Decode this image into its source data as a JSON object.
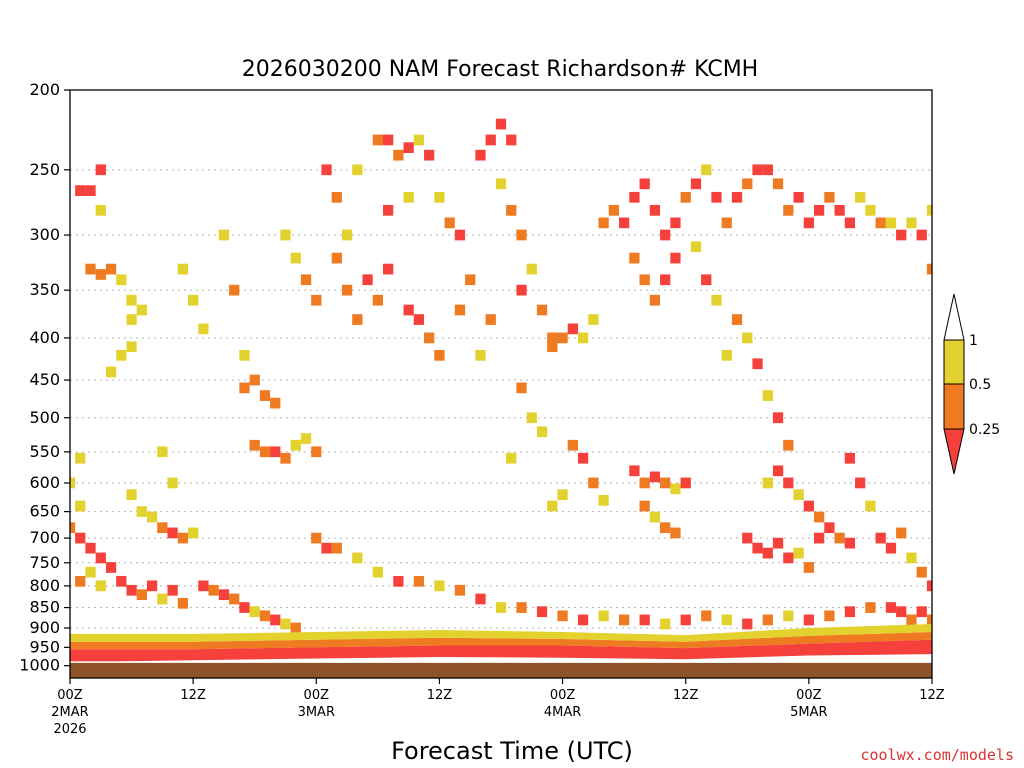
{
  "chart_data": {
    "type": "heatmap",
    "title": "2026030200 NAM Forecast Richardson# KCMH",
    "xlabel": "Forecast Time (UTC)",
    "ylabel": "",
    "y_scale": "log-pressure",
    "ylim": [
      1000,
      200
    ],
    "xlim_hours": [
      0,
      84
    ],
    "y_ticks": [
      200,
      250,
      300,
      350,
      400,
      450,
      500,
      550,
      600,
      650,
      700,
      750,
      800,
      850,
      900,
      950,
      1000
    ],
    "x_ticks": [
      {
        "hour": 0,
        "lines": [
          "00Z",
          "2MAR",
          "2026"
        ]
      },
      {
        "hour": 12,
        "lines": [
          "12Z"
        ]
      },
      {
        "hour": 24,
        "lines": [
          "00Z",
          "3MAR"
        ]
      },
      {
        "hour": 36,
        "lines": [
          "12Z"
        ]
      },
      {
        "hour": 48,
        "lines": [
          "00Z",
          "4MAR"
        ]
      },
      {
        "hour": 60,
        "lines": [
          "12Z"
        ]
      },
      {
        "hour": 72,
        "lines": [
          "00Z",
          "5MAR"
        ]
      },
      {
        "hour": 84,
        "lines": [
          "12Z"
        ]
      }
    ],
    "grid": "dotted horizontal at pressure ticks",
    "colorbar": {
      "placement": "right",
      "levels": [
        "1",
        "0.5",
        "0.25"
      ],
      "bins": [
        {
          "range": "0.5-1",
          "color": "#e3d22e"
        },
        {
          "range": "0.25-0.5",
          "color": "#ee7a22"
        },
        {
          "range": "<0.25",
          "color": "#f5403c"
        }
      ]
    },
    "surface": {
      "color": "#8f532a",
      "top_pressure_hpa": 990
    },
    "bands": [
      {
        "name": "boundary-layer-red",
        "hour_start": 0,
        "hour_end": 84,
        "p_bottom": [
          990,
          985,
          980,
          976,
          978,
          982,
          972,
          968
        ],
        "p_top": [
          955,
          955,
          950,
          945,
          945,
          952,
          940,
          930
        ],
        "category": "<0.25"
      },
      {
        "name": "low-orange",
        "hour_start": 0,
        "hour_end": 84,
        "p_bottom": [
          955,
          955,
          950,
          945,
          945,
          952,
          940,
          930
        ],
        "p_top": [
          935,
          935,
          930,
          925,
          928,
          935,
          920,
          910
        ],
        "category": "0.25-0.5"
      },
      {
        "name": "low-yellow",
        "hour_start": 0,
        "hour_end": 84,
        "p_bottom": [
          935,
          935,
          930,
          925,
          928,
          935,
          920,
          910
        ],
        "p_top": [
          915,
          915,
          910,
          905,
          910,
          918,
          900,
          890
        ],
        "category": "0.5-1"
      }
    ],
    "cells": [
      [
        1,
        265,
        "<0.25"
      ],
      [
        2,
        265,
        "<0.25"
      ],
      [
        3,
        250,
        "<0.25"
      ],
      [
        3,
        280,
        "0.5-1"
      ],
      [
        2,
        330,
        "0.25-0.5"
      ],
      [
        3,
        335,
        "0.25-0.5"
      ],
      [
        4,
        330,
        "0.25-0.5"
      ],
      [
        5,
        340,
        "0.5-1"
      ],
      [
        6,
        360,
        "0.5-1"
      ],
      [
        6,
        380,
        "0.5-1"
      ],
      [
        7,
        370,
        "0.5-1"
      ],
      [
        6,
        410,
        "0.5-1"
      ],
      [
        5,
        420,
        "0.5-1"
      ],
      [
        4,
        440,
        "0.5-1"
      ],
      [
        1,
        560,
        "0.5-1"
      ],
      [
        0,
        600,
        "0.5-1"
      ],
      [
        1,
        640,
        "0.5-1"
      ],
      [
        0,
        680,
        "0.25-0.5"
      ],
      [
        1,
        700,
        "<0.25"
      ],
      [
        2,
        720,
        "<0.25"
      ],
      [
        3,
        740,
        "<0.25"
      ],
      [
        2,
        770,
        "0.5-1"
      ],
      [
        1,
        790,
        "0.25-0.5"
      ],
      [
        3,
        800,
        "0.5-1"
      ],
      [
        4,
        760,
        "<0.25"
      ],
      [
        5,
        790,
        "<0.25"
      ],
      [
        6,
        810,
        "<0.25"
      ],
      [
        7,
        820,
        "0.25-0.5"
      ],
      [
        8,
        800,
        "<0.25"
      ],
      [
        9,
        830,
        "0.5-1"
      ],
      [
        10,
        810,
        "<0.25"
      ],
      [
        11,
        840,
        "0.25-0.5"
      ],
      [
        6,
        620,
        "0.5-1"
      ],
      [
        7,
        650,
        "0.5-1"
      ],
      [
        8,
        660,
        "0.5-1"
      ],
      [
        9,
        680,
        "0.25-0.5"
      ],
      [
        10,
        690,
        "<0.25"
      ],
      [
        11,
        700,
        "0.25-0.5"
      ],
      [
        12,
        690,
        "0.5-1"
      ],
      [
        9,
        550,
        "0.5-1"
      ],
      [
        10,
        600,
        "0.5-1"
      ],
      [
        11,
        330,
        "0.5-1"
      ],
      [
        12,
        360,
        "0.5-1"
      ],
      [
        13,
        390,
        "0.5-1"
      ],
      [
        15,
        300,
        "0.5-1"
      ],
      [
        16,
        350,
        "0.25-0.5"
      ],
      [
        17,
        420,
        "0.5-1"
      ],
      [
        17,
        460,
        "0.25-0.5"
      ],
      [
        18,
        450,
        "0.25-0.5"
      ],
      [
        19,
        470,
        "0.25-0.5"
      ],
      [
        20,
        480,
        "0.25-0.5"
      ],
      [
        18,
        540,
        "0.25-0.5"
      ],
      [
        19,
        550,
        "0.25-0.5"
      ],
      [
        20,
        550,
        "<0.25"
      ],
      [
        21,
        560,
        "0.25-0.5"
      ],
      [
        22,
        540,
        "0.5-1"
      ],
      [
        23,
        530,
        "0.5-1"
      ],
      [
        24,
        550,
        "0.25-0.5"
      ],
      [
        21,
        300,
        "0.5-1"
      ],
      [
        22,
        320,
        "0.5-1"
      ],
      [
        23,
        340,
        "0.25-0.5"
      ],
      [
        24,
        360,
        "0.25-0.5"
      ],
      [
        25,
        250,
        "<0.25"
      ],
      [
        26,
        270,
        "0.25-0.5"
      ],
      [
        26,
        320,
        "0.25-0.5"
      ],
      [
        27,
        300,
        "0.5-1"
      ],
      [
        28,
        250,
        "0.5-1"
      ],
      [
        27,
        350,
        "0.25-0.5"
      ],
      [
        28,
        380,
        "0.25-0.5"
      ],
      [
        29,
        340,
        "<0.25"
      ],
      [
        30,
        360,
        "0.25-0.5"
      ],
      [
        31,
        280,
        "<0.25"
      ],
      [
        31,
        330,
        "<0.25"
      ],
      [
        30,
        230,
        "0.25-0.5"
      ],
      [
        31,
        230,
        "<0.25"
      ],
      [
        32,
        240,
        "0.25-0.5"
      ],
      [
        33,
        235,
        "<0.25"
      ],
      [
        33,
        270,
        "0.5-1"
      ],
      [
        34,
        230,
        "0.5-1"
      ],
      [
        35,
        240,
        "<0.25"
      ],
      [
        33,
        370,
        "<0.25"
      ],
      [
        34,
        380,
        "<0.25"
      ],
      [
        35,
        400,
        "0.25-0.5"
      ],
      [
        36,
        420,
        "0.25-0.5"
      ],
      [
        36,
        270,
        "0.5-1"
      ],
      [
        37,
        290,
        "0.25-0.5"
      ],
      [
        38,
        300,
        "<0.25"
      ],
      [
        39,
        340,
        "0.25-0.5"
      ],
      [
        38,
        370,
        "0.25-0.5"
      ],
      [
        40,
        420,
        "0.5-1"
      ],
      [
        41,
        380,
        "0.25-0.5"
      ],
      [
        40,
        240,
        "<0.25"
      ],
      [
        41,
        230,
        "<0.25"
      ],
      [
        42,
        220,
        "<0.25"
      ],
      [
        43,
        230,
        "<0.25"
      ],
      [
        42,
        260,
        "0.5-1"
      ],
      [
        43,
        280,
        "0.25-0.5"
      ],
      [
        44,
        300,
        "0.25-0.5"
      ],
      [
        45,
        330,
        "0.5-1"
      ],
      [
        44,
        350,
        "<0.25"
      ],
      [
        46,
        370,
        "0.25-0.5"
      ],
      [
        47,
        400,
        "0.25-0.5"
      ],
      [
        48,
        400,
        "0.25-0.5"
      ],
      [
        49,
        390,
        "<0.25"
      ],
      [
        50,
        400,
        "0.5-1"
      ],
      [
        51,
        380,
        "0.5-1"
      ],
      [
        47,
        410,
        "0.25-0.5"
      ],
      [
        52,
        290,
        "0.25-0.5"
      ],
      [
        53,
        280,
        "0.25-0.5"
      ],
      [
        54,
        290,
        "<0.25"
      ],
      [
        55,
        270,
        "<0.25"
      ],
      [
        56,
        260,
        "<0.25"
      ],
      [
        57,
        280,
        "<0.25"
      ],
      [
        58,
        300,
        "<0.25"
      ],
      [
        59,
        290,
        "<0.25"
      ],
      [
        55,
        320,
        "0.25-0.5"
      ],
      [
        56,
        340,
        "0.25-0.5"
      ],
      [
        57,
        360,
        "0.25-0.5"
      ],
      [
        58,
        340,
        "<0.25"
      ],
      [
        59,
        320,
        "<0.25"
      ],
      [
        60,
        270,
        "0.25-0.5"
      ],
      [
        61,
        260,
        "<0.25"
      ],
      [
        62,
        250,
        "0.5-1"
      ],
      [
        63,
        270,
        "<0.25"
      ],
      [
        64,
        290,
        "0.25-0.5"
      ],
      [
        65,
        270,
        "<0.25"
      ],
      [
        66,
        260,
        "0.25-0.5"
      ],
      [
        67,
        250,
        "<0.25"
      ],
      [
        68,
        250,
        "<0.25"
      ],
      [
        69,
        260,
        "0.25-0.5"
      ],
      [
        70,
        280,
        "0.25-0.5"
      ],
      [
        71,
        270,
        "<0.25"
      ],
      [
        72,
        290,
        "<0.25"
      ],
      [
        73,
        280,
        "<0.25"
      ],
      [
        74,
        270,
        "0.25-0.5"
      ],
      [
        75,
        280,
        "<0.25"
      ],
      [
        76,
        290,
        "<0.25"
      ],
      [
        77,
        270,
        "0.5-1"
      ],
      [
        78,
        280,
        "0.5-1"
      ],
      [
        79,
        290,
        "0.25-0.5"
      ],
      [
        80,
        290,
        "0.5-1"
      ],
      [
        81,
        300,
        "<0.25"
      ],
      [
        82,
        290,
        "0.5-1"
      ],
      [
        83,
        300,
        "<0.25"
      ],
      [
        84,
        280,
        "0.5-1"
      ],
      [
        84,
        330,
        "0.25-0.5"
      ],
      [
        55,
        580,
        "<0.25"
      ],
      [
        56,
        600,
        "0.25-0.5"
      ],
      [
        57,
        590,
        "<0.25"
      ],
      [
        58,
        600,
        "0.25-0.5"
      ],
      [
        59,
        610,
        "0.5-1"
      ],
      [
        60,
        600,
        "<0.25"
      ],
      [
        56,
        640,
        "0.25-0.5"
      ],
      [
        57,
        660,
        "0.5-1"
      ],
      [
        58,
        680,
        "0.25-0.5"
      ],
      [
        59,
        690,
        "0.25-0.5"
      ],
      [
        66,
        700,
        "<0.25"
      ],
      [
        67,
        720,
        "<0.25"
      ],
      [
        68,
        730,
        "<0.25"
      ],
      [
        69,
        710,
        "<0.25"
      ],
      [
        70,
        740,
        "<0.25"
      ],
      [
        71,
        730,
        "0.5-1"
      ],
      [
        72,
        760,
        "0.25-0.5"
      ],
      [
        73,
        700,
        "<0.25"
      ],
      [
        74,
        680,
        "<0.25"
      ],
      [
        75,
        700,
        "0.25-0.5"
      ],
      [
        76,
        710,
        "<0.25"
      ],
      [
        68,
        600,
        "0.5-1"
      ],
      [
        69,
        580,
        "<0.25"
      ],
      [
        70,
        600,
        "<0.25"
      ],
      [
        71,
        620,
        "0.5-1"
      ],
      [
        72,
        640,
        "<0.25"
      ],
      [
        73,
        660,
        "0.25-0.5"
      ],
      [
        76,
        560,
        "<0.25"
      ],
      [
        77,
        600,
        "<0.25"
      ],
      [
        78,
        640,
        "0.5-1"
      ],
      [
        79,
        700,
        "<0.25"
      ],
      [
        80,
        720,
        "<0.25"
      ],
      [
        81,
        690,
        "0.25-0.5"
      ],
      [
        82,
        740,
        "0.5-1"
      ],
      [
        83,
        770,
        "0.25-0.5"
      ],
      [
        84,
        800,
        "<0.25"
      ],
      [
        80,
        850,
        "<0.25"
      ],
      [
        81,
        860,
        "<0.25"
      ],
      [
        82,
        880,
        "0.25-0.5"
      ],
      [
        83,
        860,
        "<0.25"
      ],
      [
        84,
        880,
        "0.25-0.5"
      ],
      [
        67,
        430,
        "<0.25"
      ],
      [
        68,
        470,
        "0.5-1"
      ],
      [
        69,
        500,
        "<0.25"
      ],
      [
        70,
        540,
        "0.25-0.5"
      ],
      [
        65,
        380,
        "0.25-0.5"
      ],
      [
        66,
        400,
        "0.5-1"
      ],
      [
        64,
        420,
        "0.5-1"
      ],
      [
        63,
        360,
        "0.5-1"
      ],
      [
        62,
        340,
        "<0.25"
      ],
      [
        61,
        310,
        "0.5-1"
      ],
      [
        44,
        460,
        "0.25-0.5"
      ],
      [
        45,
        500,
        "0.5-1"
      ],
      [
        43,
        560,
        "0.5-1"
      ],
      [
        46,
        520,
        "0.5-1"
      ],
      [
        49,
        540,
        "0.25-0.5"
      ],
      [
        50,
        560,
        "<0.25"
      ],
      [
        51,
        600,
        "0.25-0.5"
      ],
      [
        52,
        630,
        "0.5-1"
      ],
      [
        48,
        620,
        "0.5-1"
      ],
      [
        47,
        640,
        "0.5-1"
      ],
      [
        24,
        700,
        "0.25-0.5"
      ],
      [
        25,
        720,
        "<0.25"
      ],
      [
        26,
        720,
        "0.25-0.5"
      ],
      [
        28,
        740,
        "0.5-1"
      ],
      [
        30,
        770,
        "0.5-1"
      ],
      [
        32,
        790,
        "<0.25"
      ],
      [
        34,
        790,
        "0.25-0.5"
      ],
      [
        36,
        800,
        "0.5-1"
      ],
      [
        38,
        810,
        "0.25-0.5"
      ],
      [
        40,
        830,
        "<0.25"
      ],
      [
        42,
        850,
        "0.5-1"
      ],
      [
        44,
        850,
        "0.25-0.5"
      ],
      [
        46,
        860,
        "<0.25"
      ],
      [
        48,
        870,
        "0.25-0.5"
      ],
      [
        50,
        880,
        "<0.25"
      ],
      [
        52,
        870,
        "0.5-1"
      ],
      [
        54,
        880,
        "0.25-0.5"
      ],
      [
        56,
        880,
        "<0.25"
      ],
      [
        58,
        890,
        "0.5-1"
      ],
      [
        60,
        880,
        "<0.25"
      ],
      [
        62,
        870,
        "0.25-0.5"
      ],
      [
        64,
        880,
        "0.5-1"
      ],
      [
        66,
        890,
        "<0.25"
      ],
      [
        68,
        880,
        "0.25-0.5"
      ],
      [
        70,
        870,
        "0.5-1"
      ],
      [
        72,
        880,
        "<0.25"
      ],
      [
        74,
        870,
        "0.25-0.5"
      ],
      [
        76,
        860,
        "<0.25"
      ],
      [
        78,
        850,
        "0.25-0.5"
      ],
      [
        13,
        800,
        "<0.25"
      ],
      [
        14,
        810,
        "0.25-0.5"
      ],
      [
        15,
        820,
        "<0.25"
      ],
      [
        16,
        830,
        "0.25-0.5"
      ],
      [
        17,
        850,
        "<0.25"
      ],
      [
        18,
        860,
        "0.5-1"
      ],
      [
        19,
        870,
        "0.25-0.5"
      ],
      [
        20,
        880,
        "<0.25"
      ],
      [
        21,
        890,
        "0.5-1"
      ],
      [
        22,
        900,
        "0.25-0.5"
      ]
    ]
  },
  "colorbar_labels": {
    "top": "1",
    "mid": "0.5",
    "low": "0.25"
  },
  "watermark": "coolwx.com/models"
}
